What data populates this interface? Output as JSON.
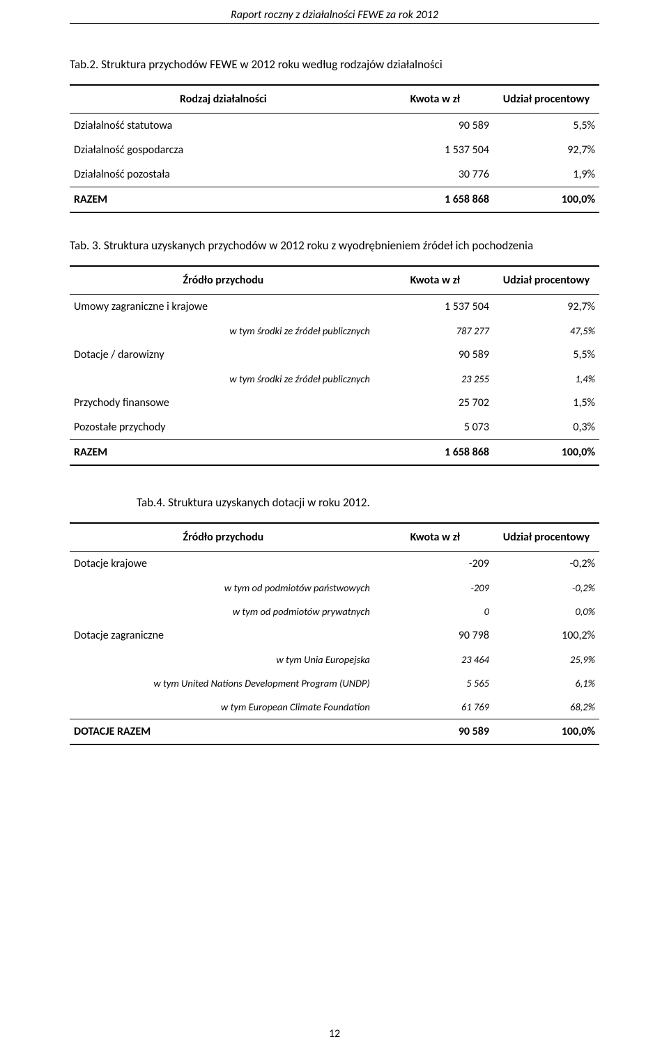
{
  "header": "Raport roczny z działalności FEWE za rok 2012",
  "pageNumber": "12",
  "tab2": {
    "caption": "Tab.2. Struktura przychodów FEWE w 2012 roku według rodzajów działalności",
    "hdr": {
      "c0": "Rodzaj działalności",
      "c1": "Kwota w zł",
      "c2": "Udział procentowy"
    },
    "rows": [
      {
        "l": "Działalność statutowa",
        "v1": "90 589",
        "v2": "5,5%",
        "type": "normal"
      },
      {
        "l": "Działalność gospodarcza",
        "v1": "1 537 504",
        "v2": "92,7%",
        "type": "normal"
      },
      {
        "l": "Działalność pozostała",
        "v1": "30 776",
        "v2": "1,9%",
        "type": "normal"
      },
      {
        "l": "RAZEM",
        "v1": "1 658 868",
        "v2": "100,0%",
        "type": "total"
      }
    ]
  },
  "tab3": {
    "caption": "Tab. 3. Struktura  uzyskanych przychodów w 2012 roku z wyodrębnieniem  źródeł  ich pochodzenia",
    "hdr": {
      "c0": "Źródło przychodu",
      "c1": "Kwota w zł",
      "c2": "Udział procentowy"
    },
    "rows": [
      {
        "l": "Umowy zagraniczne i krajowe",
        "v1": "1 537 504",
        "v2": "92,7%",
        "type": "normal"
      },
      {
        "l": "w tym środki ze źródeł publicznych",
        "v1": "787 277",
        "v2": "47,5%",
        "type": "sub"
      },
      {
        "l": "Dotacje / darowizny",
        "v1": "90 589",
        "v2": "5,5%",
        "type": "normal"
      },
      {
        "l": "w tym środki ze źródeł publicznych",
        "v1": "23 255",
        "v2": "1,4%",
        "type": "sub"
      },
      {
        "l": "Przychody finansowe",
        "v1": "25 702",
        "v2": "1,5%",
        "type": "normal"
      },
      {
        "l": "Pozostałe przychody",
        "v1": "5 073",
        "v2": "0,3%",
        "type": "normal"
      },
      {
        "l": "RAZEM",
        "v1": "1 658 868",
        "v2": "100,0%",
        "type": "total"
      }
    ]
  },
  "tab4": {
    "caption": "Tab.4. Struktura uzyskanych dotacji w roku 2012.",
    "hdr": {
      "c0": "Źródło przychodu",
      "c1": "Kwota w zł",
      "c2": "Udział procentowy"
    },
    "rows": [
      {
        "l": "Dotacje krajowe",
        "v1": "-209",
        "v2": "-0,2%",
        "type": "normal"
      },
      {
        "l": "w tym od podmiotów państwowych",
        "v1": "-209",
        "v2": "-0,2%",
        "type": "sub"
      },
      {
        "l": "w tym od podmiotów prywatnych",
        "v1": "0",
        "v2": "0,0%",
        "type": "sub"
      },
      {
        "l": "Dotacje zagraniczne",
        "v1": "90 798",
        "v2": "100,2%",
        "type": "normal"
      },
      {
        "l": "w tym Unia Europejska",
        "v1": "23 464",
        "v2": "25,9%",
        "type": "sub"
      },
      {
        "l": "w tym United Nations Development Program (UNDP)",
        "v1": "5 565",
        "v2": "6,1%",
        "type": "sub"
      },
      {
        "l": "w tym European Climate Foundation",
        "v1": "61 769",
        "v2": "68,2%",
        "type": "sub"
      },
      {
        "l": "DOTACJE RAZEM",
        "v1": "90 589",
        "v2": "100,0%",
        "type": "total"
      }
    ]
  }
}
